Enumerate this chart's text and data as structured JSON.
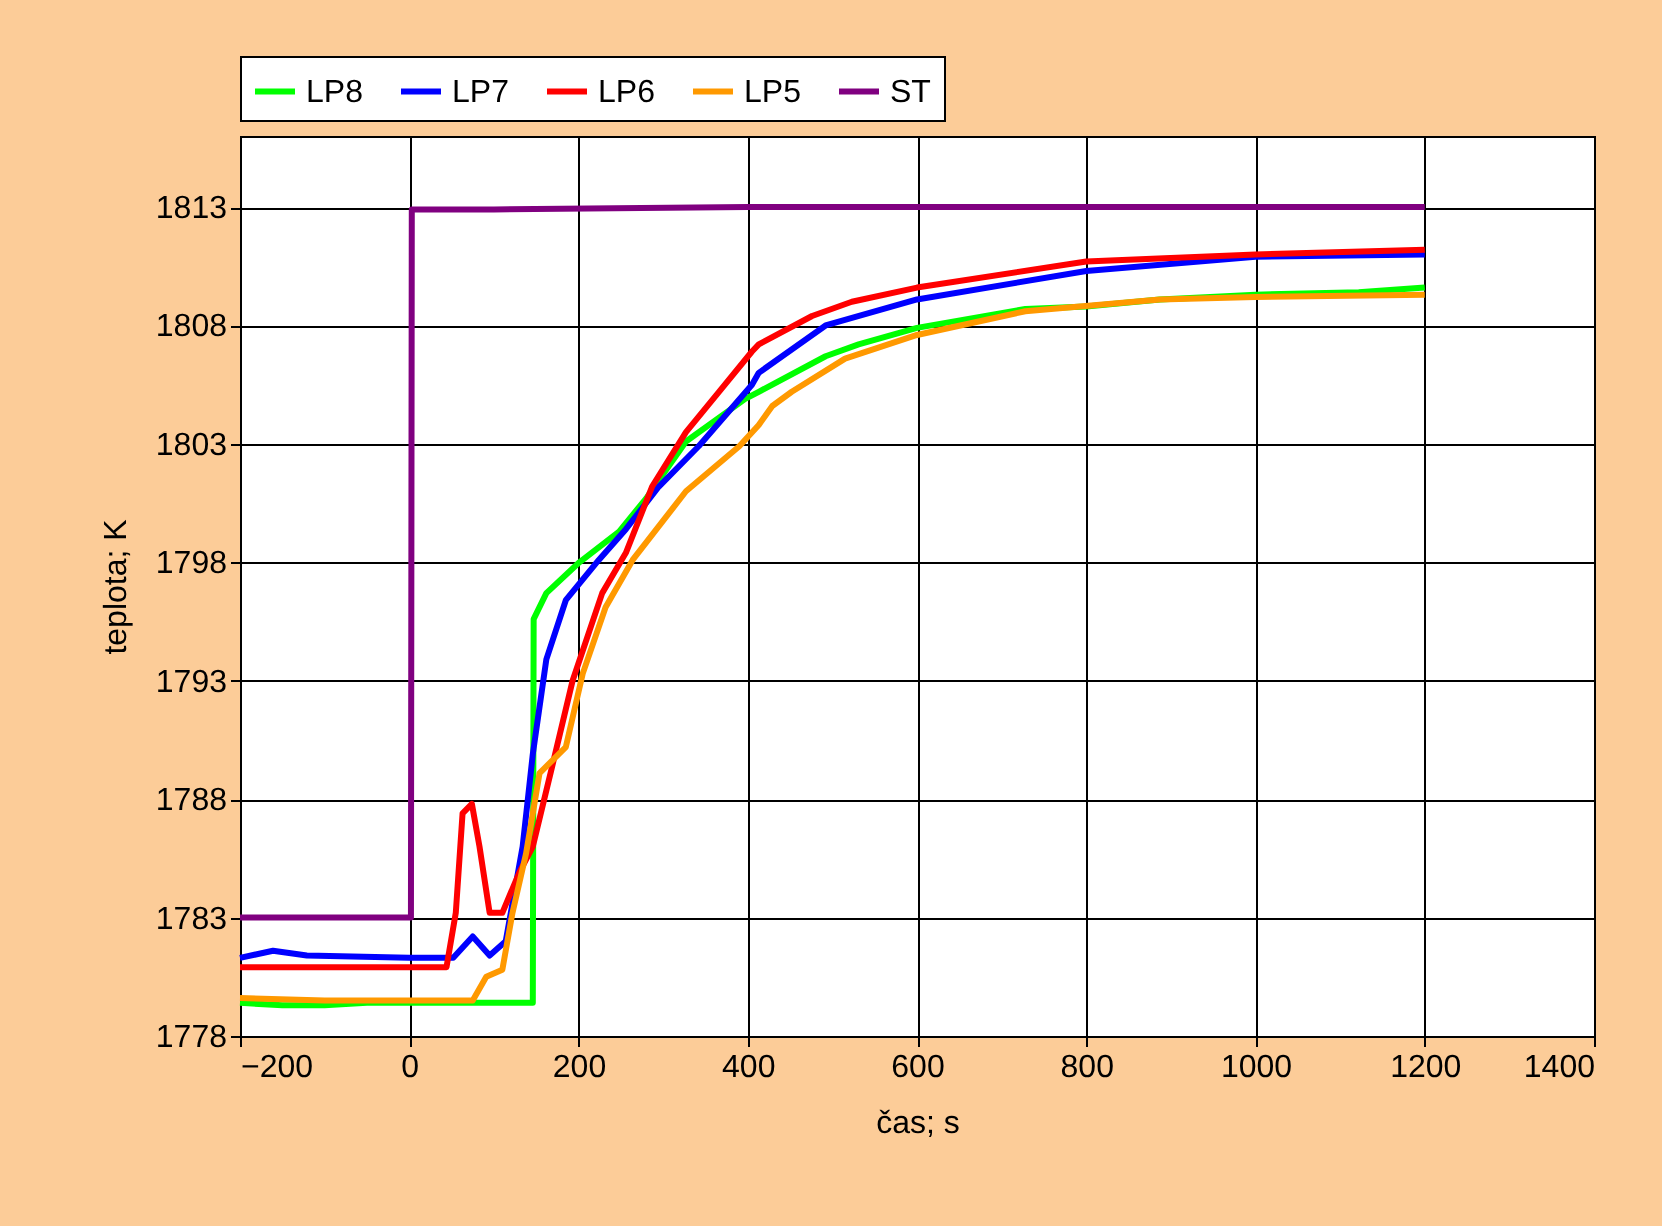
{
  "chart_data": {
    "type": "line",
    "xlabel": "čas; s",
    "ylabel": "teplota; K",
    "xlim": [
      -200,
      1400
    ],
    "xticks": [
      -200,
      0,
      200,
      400,
      600,
      800,
      1000,
      1200,
      1400
    ],
    "ylim": [
      1778,
      1816
    ],
    "yticks": [
      1778,
      1783,
      1788,
      1793,
      1798,
      1803,
      1808,
      1813
    ],
    "grid": true,
    "legend": "top",
    "line_style": "solid",
    "marker": "none",
    "series": [
      {
        "name": "LP8",
        "color": "#00ff00",
        "x": [
          -200,
          -150,
          -100,
          -50,
          0,
          50,
          100,
          146,
          147,
          162,
          201,
          248,
          280,
          327,
          397,
          413,
          492,
          531,
          600,
          728,
          800,
          887,
          1000,
          1122,
          1200
        ],
        "values": [
          1779.4,
          1779.3,
          1779.3,
          1779.4,
          1779.4,
          1779.4,
          1779.4,
          1779.4,
          1795.6,
          1796.7,
          1798.0,
          1799.3,
          1800.7,
          1803.1,
          1804.9,
          1805.2,
          1806.7,
          1807.2,
          1807.9,
          1808.7,
          1808.8,
          1809.1,
          1809.3,
          1809.4,
          1809.6
        ]
      },
      {
        "name": "LP7",
        "color": "#0000ff",
        "x": [
          -200,
          -161,
          -121,
          0,
          52,
          75,
          95,
          114,
          134,
          146,
          162,
          185,
          224,
          256,
          295,
          342,
          405,
          413,
          492,
          600,
          800,
          1000,
          1200
        ],
        "values": [
          1781.3,
          1781.6,
          1781.4,
          1781.3,
          1781.3,
          1782.2,
          1781.4,
          1782.0,
          1786.0,
          1789.9,
          1793.9,
          1796.4,
          1798.1,
          1799.4,
          1801.2,
          1802.9,
          1805.5,
          1806.0,
          1808.0,
          1809.1,
          1810.3,
          1810.9,
          1811.0
        ]
      },
      {
        "name": "LP6",
        "color": "#ff0000",
        "x": [
          -200,
          -100,
          0,
          44,
          55,
          63,
          74,
          83,
          95,
          110,
          130,
          146,
          169,
          193,
          228,
          256,
          287,
          327,
          366,
          405,
          413,
          476,
          523,
          600,
          800,
          1000,
          1200
        ],
        "values": [
          1780.9,
          1780.9,
          1780.9,
          1780.9,
          1783.2,
          1787.4,
          1787.8,
          1786.0,
          1783.2,
          1783.2,
          1784.9,
          1786.0,
          1789.4,
          1793.0,
          1796.7,
          1798.4,
          1801.2,
          1803.5,
          1805.2,
          1806.9,
          1807.2,
          1808.4,
          1809.0,
          1809.6,
          1810.7,
          1811.0,
          1811.2
        ]
      },
      {
        "name": "LP5",
        "color": "#ff9900",
        "x": [
          -200,
          -100,
          0,
          75,
          91,
          110,
          122,
          138,
          154,
          185,
          205,
          232,
          264,
          327,
          390,
          413,
          429,
          452,
          515,
          600,
          728,
          887,
          1000,
          1200
        ],
        "values": [
          1779.6,
          1779.5,
          1779.5,
          1779.5,
          1780.5,
          1780.8,
          1783.2,
          1785.7,
          1789.1,
          1790.2,
          1793.3,
          1796.1,
          1798.1,
          1801.0,
          1802.9,
          1803.8,
          1804.6,
          1805.2,
          1806.6,
          1807.6,
          1808.6,
          1809.1,
          1809.2,
          1809.3
        ]
      },
      {
        "name": "ST",
        "color": "#800080",
        "x": [
          -200,
          0,
          2,
          3,
          100,
          400,
          800,
          1200
        ],
        "values": [
          1783.0,
          1783.0,
          1783.0,
          1812.9,
          1812.9,
          1813.0,
          1813.0,
          1813.0
        ]
      }
    ]
  }
}
